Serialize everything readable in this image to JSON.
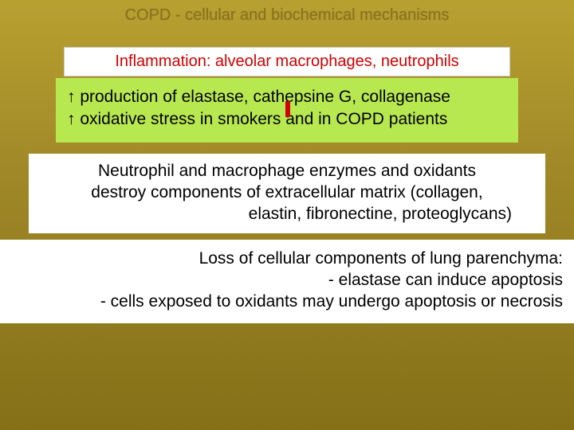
{
  "title": "COPD - cellular and biochemical mechanisms",
  "boxes": {
    "inflammation": "Inflammation:  alveolar macrophages, neutrophils",
    "green": {
      "line1_prefix": "↑",
      "line1": " production of elastase, cathepsine G, collagenase",
      "line2_prefix": "↑",
      "line2": " oxidative stress in smokers and in COPD patients"
    },
    "white1": {
      "l1": "Neutrophil and macrophage enzymes and oxidants",
      "l2": "destroy components of extracellular matrix (collagen,",
      "l3": "elastin, fibronectine, proteoglycans)"
    },
    "white2": {
      "l1": "Loss of cellular components of lung parenchyma:",
      "l2": "- elastase can  induce apoptosis",
      "l3": "- cells exposed to oxidants may undergo apoptosis or necrosis"
    }
  },
  "colors": {
    "bg_top": "#b8a030",
    "bg_bottom": "#857018",
    "title_color": "#8a7220",
    "red": "#d00000",
    "green": "#b8e850",
    "white": "#ffffff",
    "text": "#000000"
  },
  "typography": {
    "title_fontsize": 20,
    "box_fontsize": 21
  }
}
